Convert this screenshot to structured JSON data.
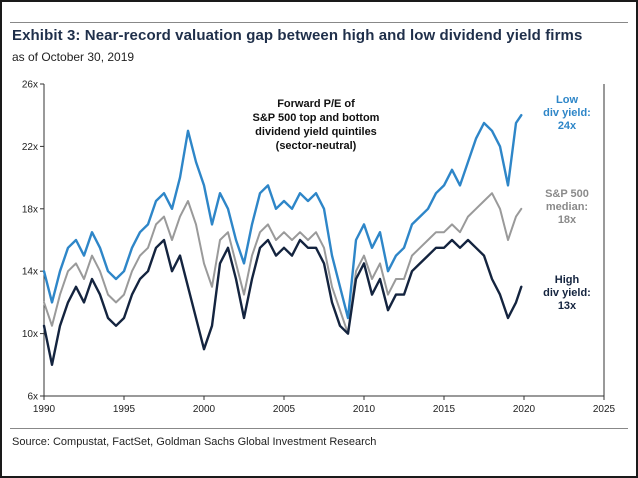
{
  "header": {
    "title": "Exhibit 3: Near-record valuation gap between high and low dividend yield firms",
    "subtitle": "as of October 30, 2019"
  },
  "footer": {
    "source": "Source: Compustat, FactSet, Goldman Sachs Global Investment Research"
  },
  "colors": {
    "low": "#2e86c8",
    "median": "#9a9a9a",
    "high": "#14243f",
    "axis": "#333333",
    "title": "#1f2f4a"
  },
  "chart_data": {
    "type": "line",
    "title": "Forward P/E of S&P 500 top and bottom dividend yield quintiles (sector-neutral)",
    "annotation_lines": [
      "Forward P/E of",
      "S&P 500 top and bottom",
      "dividend yield quintiles",
      "(sector-neutral)"
    ],
    "xlim": [
      1990,
      2025
    ],
    "ylim": [
      6,
      26
    ],
    "x_ticks": [
      1990,
      1995,
      2000,
      2005,
      2010,
      2015,
      2020,
      2025
    ],
    "x_tick_labels": [
      "1990",
      "1995",
      "2000",
      "2005",
      "2010",
      "2015",
      "2020",
      "2025"
    ],
    "y_ticks": [
      6,
      10,
      14,
      18,
      22,
      26
    ],
    "y_tick_labels": [
      "6x",
      "10x",
      "14x",
      "18x",
      "22x",
      "26x"
    ],
    "series": [
      {
        "name": "Low div yield",
        "key": "low",
        "label_lines": [
          "Low",
          "div yield:",
          "24x"
        ],
        "x": [
          1990.0,
          1990.5,
          1991.0,
          1991.5,
          1992.0,
          1992.5,
          1993.0,
          1993.5,
          1994.0,
          1994.5,
          1995.0,
          1995.5,
          1996.0,
          1996.5,
          1997.0,
          1997.5,
          1998.0,
          1998.5,
          1999.0,
          1999.5,
          2000.0,
          2000.5,
          2001.0,
          2001.5,
          2002.0,
          2002.5,
          2003.0,
          2003.5,
          2004.0,
          2004.5,
          2005.0,
          2005.5,
          2006.0,
          2006.5,
          2007.0,
          2007.5,
          2008.0,
          2008.5,
          2009.0,
          2009.5,
          2010.0,
          2010.5,
          2011.0,
          2011.5,
          2012.0,
          2012.5,
          2013.0,
          2013.5,
          2014.0,
          2014.5,
          2015.0,
          2015.5,
          2016.0,
          2016.5,
          2017.0,
          2017.5,
          2018.0,
          2018.5,
          2019.0,
          2019.5,
          2019.83
        ],
        "values": [
          14.0,
          12.0,
          14.0,
          15.5,
          16.0,
          15.0,
          16.5,
          15.5,
          14.0,
          13.5,
          14.0,
          15.5,
          16.5,
          17.0,
          18.5,
          19.0,
          18.0,
          20.0,
          23.0,
          21.0,
          19.5,
          17.0,
          19.0,
          18.0,
          16.0,
          14.5,
          17.0,
          19.0,
          19.5,
          18.0,
          18.5,
          18.0,
          19.0,
          18.5,
          19.0,
          18.0,
          15.0,
          13.0,
          11.0,
          16.0,
          17.0,
          15.5,
          16.5,
          14.0,
          15.0,
          15.5,
          17.0,
          17.5,
          18.0,
          19.0,
          19.5,
          20.5,
          19.5,
          21.0,
          22.5,
          23.5,
          23.0,
          22.0,
          19.5,
          23.5,
          24.0
        ]
      },
      {
        "name": "S&P 500 median",
        "key": "median",
        "label_lines": [
          "S&P 500",
          "median:",
          "18x"
        ],
        "x": [
          1990.0,
          1990.5,
          1991.0,
          1991.5,
          1992.0,
          1992.5,
          1993.0,
          1993.5,
          1994.0,
          1994.5,
          1995.0,
          1995.5,
          1996.0,
          1996.5,
          1997.0,
          1997.5,
          1998.0,
          1998.5,
          1999.0,
          1999.5,
          2000.0,
          2000.5,
          2001.0,
          2001.5,
          2002.0,
          2002.5,
          2003.0,
          2003.5,
          2004.0,
          2004.5,
          2005.0,
          2005.5,
          2006.0,
          2006.5,
          2007.0,
          2007.5,
          2008.0,
          2008.5,
          2009.0,
          2009.5,
          2010.0,
          2010.5,
          2011.0,
          2011.5,
          2012.0,
          2012.5,
          2013.0,
          2013.5,
          2014.0,
          2014.5,
          2015.0,
          2015.5,
          2016.0,
          2016.5,
          2017.0,
          2017.5,
          2018.0,
          2018.5,
          2019.0,
          2019.5,
          2019.83
        ],
        "values": [
          12.0,
          10.5,
          12.5,
          14.0,
          14.5,
          13.5,
          15.0,
          14.0,
          12.5,
          12.0,
          12.5,
          14.0,
          15.0,
          15.5,
          17.0,
          17.5,
          16.0,
          17.5,
          18.5,
          17.0,
          14.5,
          13.0,
          16.0,
          16.5,
          14.5,
          12.5,
          15.0,
          16.5,
          17.0,
          16.0,
          16.5,
          16.0,
          16.5,
          16.0,
          16.5,
          15.5,
          13.0,
          11.5,
          10.0,
          14.0,
          15.0,
          13.5,
          14.5,
          12.5,
          13.5,
          13.5,
          15.0,
          15.5,
          16.0,
          16.5,
          16.5,
          17.0,
          16.5,
          17.5,
          18.0,
          18.5,
          19.0,
          18.0,
          16.0,
          17.5,
          18.0
        ]
      },
      {
        "name": "High div yield",
        "key": "high",
        "label_lines": [
          "High",
          "div yield:",
          "13x"
        ],
        "x": [
          1990.0,
          1990.5,
          1991.0,
          1991.5,
          1992.0,
          1992.5,
          1993.0,
          1993.5,
          1994.0,
          1994.5,
          1995.0,
          1995.5,
          1996.0,
          1996.5,
          1997.0,
          1997.5,
          1998.0,
          1998.5,
          1999.0,
          1999.5,
          2000.0,
          2000.5,
          2001.0,
          2001.5,
          2002.0,
          2002.5,
          2003.0,
          2003.5,
          2004.0,
          2004.5,
          2005.0,
          2005.5,
          2006.0,
          2006.5,
          2007.0,
          2007.5,
          2008.0,
          2008.5,
          2009.0,
          2009.5,
          2010.0,
          2010.5,
          2011.0,
          2011.5,
          2012.0,
          2012.5,
          2013.0,
          2013.5,
          2014.0,
          2014.5,
          2015.0,
          2015.5,
          2016.0,
          2016.5,
          2017.0,
          2017.5,
          2018.0,
          2018.5,
          2019.0,
          2019.5,
          2019.83
        ],
        "values": [
          10.5,
          8.0,
          10.5,
          12.0,
          13.0,
          12.0,
          13.5,
          12.5,
          11.0,
          10.5,
          11.0,
          12.5,
          13.5,
          14.0,
          15.5,
          16.0,
          14.0,
          15.0,
          13.0,
          11.0,
          9.0,
          10.5,
          14.5,
          15.5,
          13.5,
          11.0,
          13.5,
          15.5,
          16.0,
          15.0,
          15.5,
          15.0,
          16.0,
          15.5,
          15.5,
          14.5,
          12.0,
          10.5,
          10.0,
          13.5,
          14.5,
          12.5,
          13.5,
          11.5,
          12.5,
          12.5,
          14.0,
          14.5,
          15.0,
          15.5,
          15.5,
          16.0,
          15.5,
          16.0,
          15.5,
          15.0,
          13.5,
          12.5,
          11.0,
          12.0,
          13.0
        ]
      }
    ]
  }
}
